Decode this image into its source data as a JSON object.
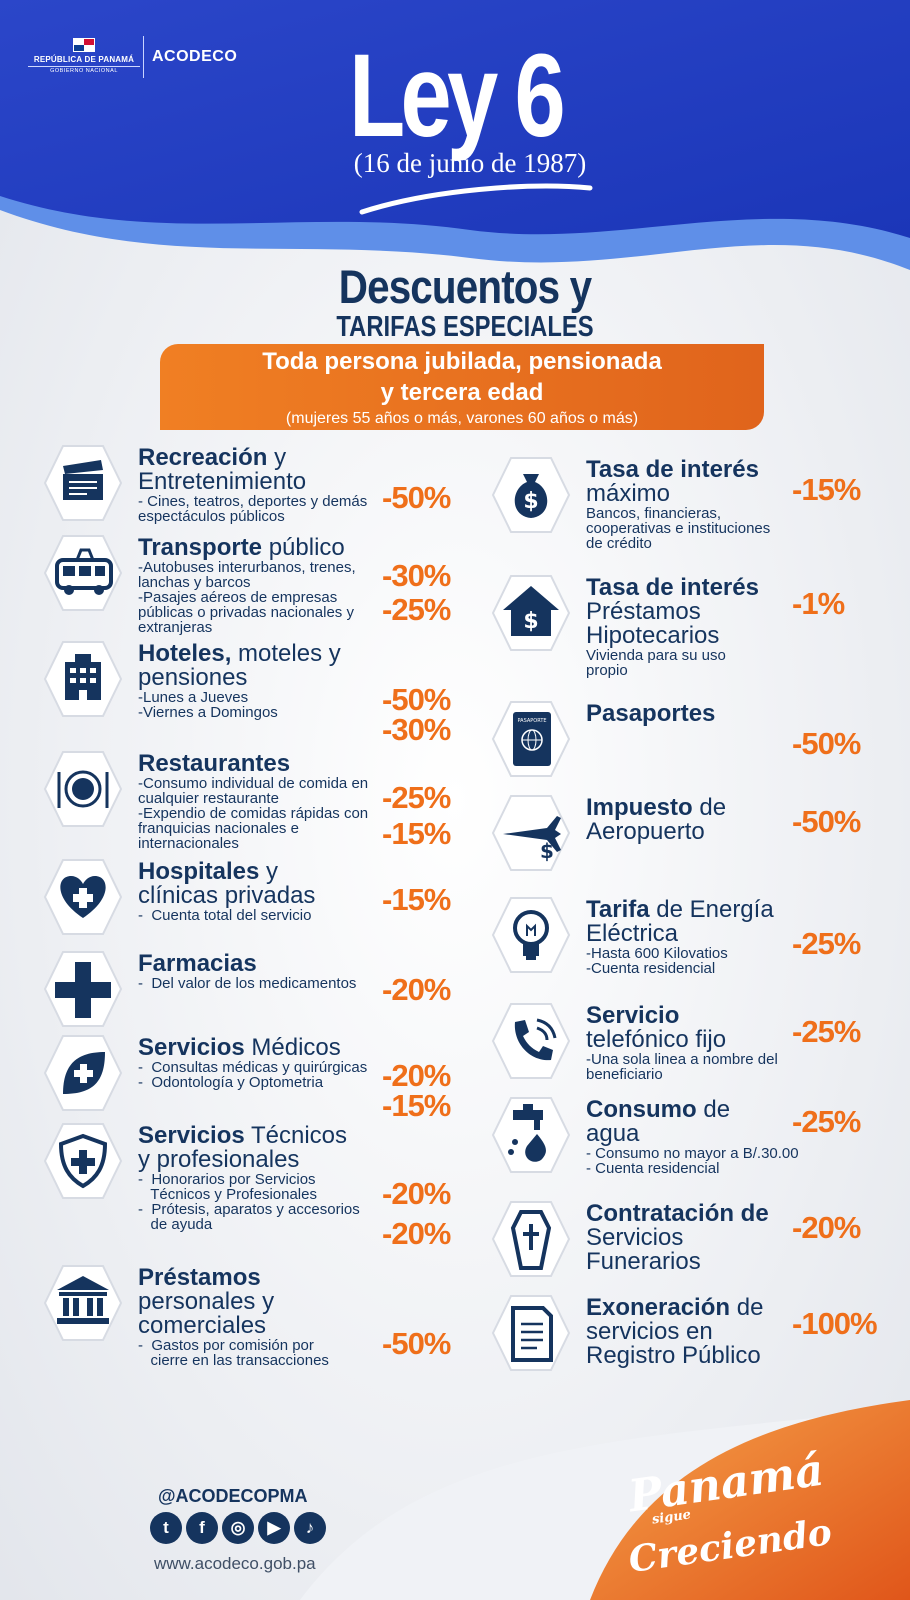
{
  "header": {
    "gov_name": "REPÚBLICA DE PANAMÁ",
    "gov_sub": "GOBIERNO NACIONAL",
    "agency": "ACODECO",
    "law_title": "Ley 6",
    "law_date": "(16 de junio de 1987)"
  },
  "intro": {
    "title_line1": "Descuentos y",
    "title_line2": "TARIFAS ESPECIALES",
    "banner_line1": "Toda persona jubilada, pensionada",
    "banner_line2": "y tercera edad",
    "banner_note": "(mujeres 55 años o más,  varones  60 años o más)"
  },
  "left": [
    {
      "icon": "clapperboard-icon",
      "bold": "Recreación",
      "rest": " y",
      "line2": "Entretenimiento",
      "details": [
        "- Cines, teatros, deportes y demás",
        "espectáculos públicos"
      ],
      "pcts": [
        "-50%"
      ]
    },
    {
      "icon": "bus-icon",
      "bold": "Transporte",
      "rest": " público",
      "line2": "",
      "details": [
        "-Autobuses interurbanos, trenes,",
        "lanchas y barcos",
        "-Pasajes aéreos de empresas",
        "públicas o privadas nacionales y",
        "extranjeras"
      ],
      "pcts": [
        "-30%",
        "-25%"
      ]
    },
    {
      "icon": "building-icon",
      "bold": "Hoteles,",
      "rest": " moteles y",
      "line2": "pensiones",
      "details": [
        "-Lunes a Jueves",
        "-Viernes a Domingos"
      ],
      "pcts": [
        "-50%",
        "-30%"
      ]
    },
    {
      "icon": "plate-cutlery-icon",
      "bold": "Restaurantes",
      "rest": "",
      "line2": "",
      "details": [
        "-Consumo individual de comida en",
        "cualquier restaurante",
        "-Expendio de comidas rápidas con",
        "franquicias nacionales e",
        "internacionales"
      ],
      "pcts": [
        "-25%",
        "-15%"
      ]
    },
    {
      "icon": "heart-cross-icon",
      "bold": "Hospitales",
      "rest": " y",
      "line2": "clínicas privadas",
      "details": [
        "-  Cuenta total del servicio"
      ],
      "pcts": [
        "-15%"
      ]
    },
    {
      "icon": "medical-cross-icon",
      "bold": "Farmacias",
      "rest": "",
      "line2": "",
      "details": [
        "-  Del valor de los medicamentos"
      ],
      "pcts": [
        "-20%"
      ]
    },
    {
      "icon": "leaf-cross-icon",
      "bold": "Servicios",
      "rest": " Médicos",
      "line2": "",
      "details": [
        "-  Consultas médicas y quirúrgicas",
        "-  Odontología y Optometria"
      ],
      "pcts": [
        "-20%",
        "-15%"
      ]
    },
    {
      "icon": "shield-cross-icon",
      "bold": "Servicios",
      "rest": " Técnicos",
      "line2": "y profesionales",
      "details": [
        "-  Honorarios por Servicios",
        "   Técnicos y Profesionales",
        "-  Prótesis, aparatos y accesorios",
        "   de ayuda"
      ],
      "pcts": [
        "-20%",
        "-20%"
      ]
    },
    {
      "icon": "bank-icon",
      "bold": "Préstamos",
      "rest": "",
      "line2": "personales y",
      "line3": "comerciales",
      "details": [
        "-  Gastos por comisión por",
        "   cierre en las transacciones"
      ],
      "pcts": [
        "-50%"
      ]
    }
  ],
  "right": [
    {
      "icon": "money-bag-icon",
      "bold": "Tasa de interés",
      "rest": "",
      "line2": "máximo",
      "details": [
        "Bancos, financieras,",
        "cooperativas e instituciones",
        "de crédito"
      ],
      "pcts": [
        "-15%"
      ]
    },
    {
      "icon": "house-dollar-icon",
      "bold": "Tasa de interés",
      "rest": "",
      "line2": "Préstamos",
      "line3": "Hipotecarios",
      "details": [
        "Vivienda para su uso",
        "propio"
      ],
      "pcts": [
        "-1%"
      ]
    },
    {
      "icon": "passport-icon",
      "bold": "Pasaportes",
      "rest": "",
      "line2": "",
      "details": [],
      "pcts": [
        "-50%"
      ],
      "passport_text": "PASAPORTE"
    },
    {
      "icon": "plane-dollar-icon",
      "bold": "Impuesto",
      "rest": " de",
      "line2": "Aeropuerto",
      "details": [],
      "pcts": [
        "-50%"
      ]
    },
    {
      "icon": "light-bulb-icon",
      "bold": "Tarifa",
      "rest": " de Energía",
      "line2": "Eléctrica",
      "details": [
        "-Hasta 600 Kilovatios",
        "-Cuenta residencial"
      ],
      "pcts": [
        "-25%"
      ]
    },
    {
      "icon": "phone-icon",
      "bold": "Servicio",
      "rest": "",
      "line2": "telefónico fijo",
      "details": [
        "-Una sola linea a nombre del",
        "beneficiario"
      ],
      "pcts": [
        "-25%"
      ]
    },
    {
      "icon": "water-faucet-icon",
      "bold": "Consumo",
      "rest": " de",
      "line2": "agua",
      "details": [
        "- Consumo no mayor a B/.30.00",
        "- Cuenta residencial"
      ],
      "pcts": [
        "-25%"
      ]
    },
    {
      "icon": "coffin-icon",
      "bold": "Contratación de",
      "rest": "",
      "line2": "Servicios",
      "line3": "Funerarios",
      "details": [],
      "pcts": [
        "-20%"
      ]
    },
    {
      "icon": "document-icon",
      "bold": "Exoneración",
      "rest": " de",
      "line2": "servicios en",
      "line3": "Registro Público",
      "details": [],
      "pcts": [
        "-100%"
      ]
    }
  ],
  "footer": {
    "handle": "@ACODECOPMA",
    "website": "www.acodeco.gob.pa",
    "slogan_line1": "Panamá",
    "slogan_line2": "sigue",
    "slogan_line3": "Creciendo"
  },
  "colors": {
    "navy": "#15345e",
    "orange": "#ef6f1a",
    "blue": "#1e3fc4"
  }
}
